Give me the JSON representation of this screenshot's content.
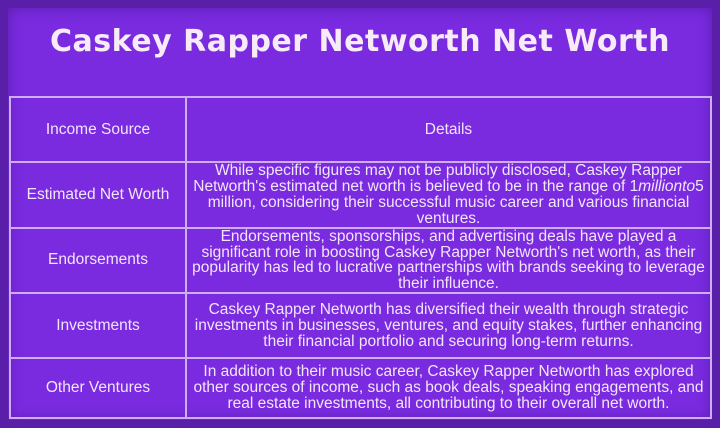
{
  "page": {
    "title": "Caskey Rapper Networth Net Worth"
  },
  "colors": {
    "background": "#7a2be0",
    "frame": "#5a1fa8",
    "table_border": "#cfadf3",
    "body_text": "#f2e5fa",
    "title_text": "#f7ebf7"
  },
  "table": {
    "headers": {
      "income_source": "Income Source",
      "details": "Details"
    },
    "rows": [
      {
        "source": "Estimated Net Worth",
        "row_class": "row-h1",
        "details_parts": [
          {
            "text": "While specific figures may not be publicly disclosed, Caskey Rapper Networth's estimated net worth is believed to be in the range of 1",
            "italic": false
          },
          {
            "text": "millionto",
            "italic": true
          },
          {
            "text": "5 million, considering their successful music career and various financial ventures.",
            "italic": false
          }
        ]
      },
      {
        "source": "Endorsements",
        "row_class": "row-h2",
        "details_parts": [
          {
            "text": "Endorsements, sponsorships, and advertising deals have played a significant role in boosting Caskey Rapper Networth's net worth, as their popularity has led to lucrative partnerships with brands seeking to leverage their influence.",
            "italic": false
          }
        ]
      },
      {
        "source": "Investments",
        "row_class": "row-h3",
        "details_parts": [
          {
            "text": "Caskey Rapper Networth has diversified their wealth through strategic investments in businesses, ventures, and equity stakes, further enhancing their financial portfolio and securing long-term returns.",
            "italic": false
          }
        ]
      },
      {
        "source": "Other Ventures",
        "row_class": "row-h4",
        "details_parts": [
          {
            "text": "In addition to their music career, Caskey Rapper Networth has explored other sources of income, such as book deals, speaking engagements, and real estate investments, all contributing to their overall net worth.",
            "italic": false
          }
        ]
      }
    ]
  }
}
